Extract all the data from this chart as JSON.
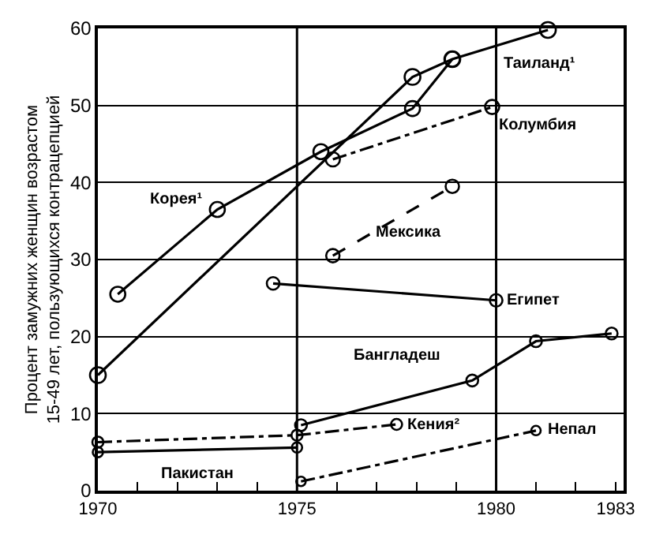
{
  "chart_data": {
    "type": "line",
    "ylabel": "Процент замужних женщин возрастом\n15-49 лет, пользующихся контрацепцией",
    "xlim": [
      1970,
      1983.2
    ],
    "ylim": [
      0,
      60
    ],
    "xticks": [
      1970,
      {
        "value": 1971,
        "label": null
      },
      {
        "value": 1972,
        "label": null
      },
      {
        "value": 1973,
        "label": null
      },
      {
        "value": 1974,
        "label": null
      },
      1975,
      {
        "value": 1976,
        "label": null
      },
      {
        "value": 1977,
        "label": null
      },
      {
        "value": 1978,
        "label": null
      },
      {
        "value": 1979,
        "label": null
      },
      1980,
      {
        "value": 1981,
        "label": null
      },
      {
        "value": 1982,
        "label": null
      },
      1983
    ],
    "yticks": [
      0,
      10,
      20,
      30,
      40,
      50,
      60
    ],
    "grid": "y",
    "legend": false,
    "marker": "circle",
    "ref_lines": [
      {
        "axis": "x",
        "value": 1975,
        "color": "#000000"
      },
      {
        "axis": "x",
        "value": 1980,
        "color": "#000000"
      }
    ],
    "series": [
      {
        "name": "Таиланд¹",
        "color": "#000000",
        "line_style": "solid",
        "x": [
          1970,
          1977.9,
          1978.9,
          1981.3
        ],
        "values": [
          15,
          53.7,
          56,
          59.8
        ]
      },
      {
        "name": "Корея¹",
        "color": "#000000",
        "line_style": "solid",
        "x": [
          1970.5,
          1973,
          1975.6,
          1977.9,
          1978.9
        ],
        "values": [
          25.5,
          36.5,
          44,
          49.6,
          56
        ]
      },
      {
        "name": "Колумбия",
        "color": "#000000",
        "line_style": "dashdot",
        "x": [
          1975.9,
          1979.9
        ],
        "values": [
          43,
          49.8
        ]
      },
      {
        "name": "Мексика",
        "color": "#000000",
        "line_style": "dashed",
        "x": [
          1975.9,
          1978.9
        ],
        "values": [
          30.5,
          39.5
        ]
      },
      {
        "name": "Египет",
        "color": "#000000",
        "line_style": "solid",
        "x": [
          1974.4,
          1980
        ],
        "values": [
          26.9,
          24.7
        ]
      },
      {
        "name": "Бангладеш",
        "color": "#000000",
        "line_style": "solid",
        "x": [
          1975.1,
          1979.4,
          1981,
          1982.9
        ],
        "values": [
          8.5,
          14.3,
          19.4,
          20.4
        ]
      },
      {
        "name": "Кения²",
        "color": "#000000",
        "line_style": "dashdot",
        "x": [
          1970,
          1975,
          1977.5
        ],
        "values": [
          6.3,
          7.2,
          8.6
        ]
      },
      {
        "name": "Пакистан",
        "color": "#000000",
        "line_style": "solid",
        "x": [
          1970,
          1975
        ],
        "values": [
          5,
          5.6
        ]
      },
      {
        "name": "Непал",
        "color": "#000000",
        "line_style": "dashdot",
        "x": [
          1975.1,
          1981
        ],
        "values": [
          1.2,
          7.8
        ]
      }
    ]
  }
}
